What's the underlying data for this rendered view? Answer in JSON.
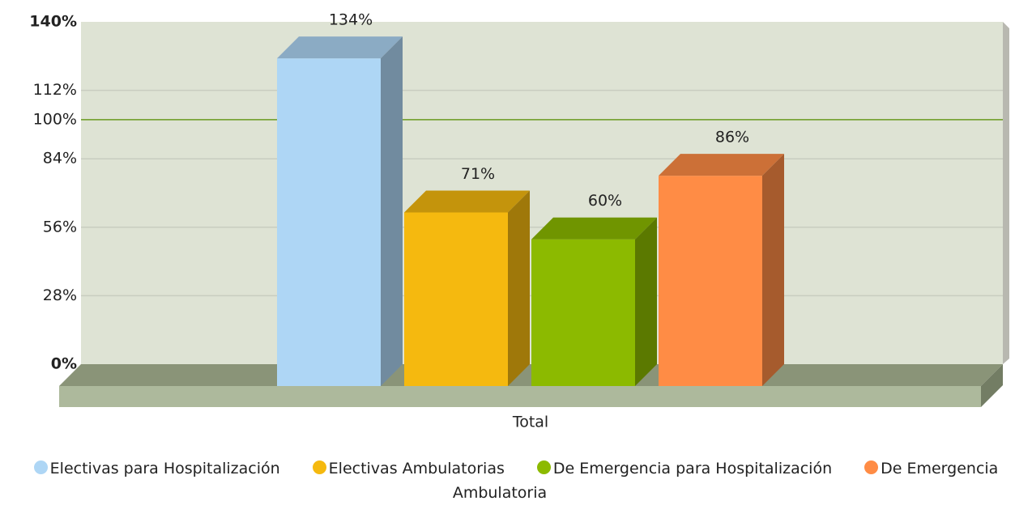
{
  "chart_data": {
    "type": "bar3d",
    "categories": [
      "Total"
    ],
    "series": [
      {
        "name": "Electivas para Hospitalización",
        "color": "#aed6f5",
        "values": [
          134
        ],
        "value_labels": [
          "134%"
        ]
      },
      {
        "name": "Electivas Ambulatorias",
        "color": "#f5b90f",
        "values": [
          71
        ],
        "value_labels": [
          "71%"
        ]
      },
      {
        "name": "De Emergencia para Hospitalización",
        "color": "#8cba00",
        "values": [
          60
        ],
        "value_labels": [
          "60%"
        ]
      },
      {
        "name": "De Emergencia Ambulatoria",
        "color": "#ff8c45",
        "values": [
          86
        ],
        "value_labels": [
          "86%"
        ]
      }
    ],
    "ylim": [
      0,
      140
    ],
    "yticks": [
      {
        "value": 0,
        "label": "0%"
      },
      {
        "value": 28,
        "label": "28%"
      },
      {
        "value": 56,
        "label": "56%"
      },
      {
        "value": 84,
        "label": "84%"
      },
      {
        "value": 112,
        "label": "112%"
      },
      {
        "value": 140,
        "label": "140%"
      }
    ],
    "reference_line": {
      "value": 100,
      "label": "100%",
      "color": "#6a9a1f"
    },
    "grid": true
  }
}
